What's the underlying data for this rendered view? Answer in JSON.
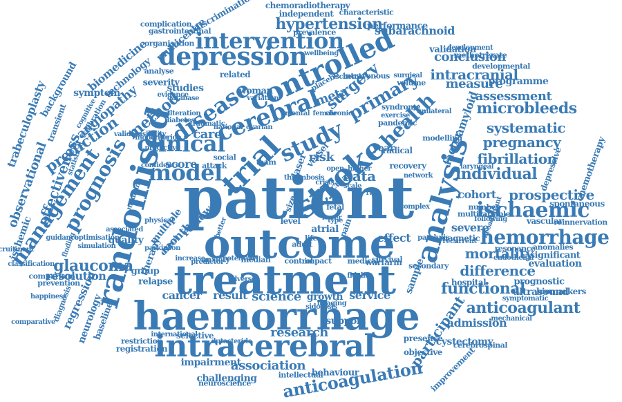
{
  "color": "#3a7bb5",
  "words": [
    "patient",
    "outcome",
    "treatment",
    "haemorrhage",
    "randomised",
    "intracerebral",
    "stroke",
    "analysis",
    "trial",
    "depression",
    "controlled",
    "cerebral",
    "intervention",
    "clinical",
    "model",
    "study",
    "disease",
    "management",
    "prognosis",
    "health",
    "hemorrhage",
    "ischaemic",
    "anticoagulant",
    "primary",
    "functional",
    "individual",
    "microbleeds",
    "prospective",
    "glaucoma",
    "anticoagulation",
    "participant",
    "hypertension",
    "intracranial",
    "systematic",
    "pregnancy",
    "fibrillation",
    "mortality",
    "difference",
    "research",
    "association",
    "science",
    "surgery",
    "method",
    "prediction",
    "effectiveness",
    "observational",
    "trabeculoplasty",
    "care",
    "data",
    "risk",
    "meta",
    "conclusion",
    "assessment",
    "measure",
    "subarachnoid",
    "angiopathy",
    "regression",
    "cancer",
    "result",
    "service",
    "effect",
    "admission",
    "resolution",
    "quality",
    "score",
    "month",
    "review",
    "multiple",
    "cohort",
    "amyloid",
    "factor",
    "sample",
    "severe",
    "evaluation",
    "significant",
    "ultrasound",
    "growth",
    "support",
    "impairment",
    "challenging",
    "selective",
    "cystectomy",
    "presence",
    "objective",
    "multicentre",
    "discrimination",
    "chemoradiotherapy",
    "independent",
    "characteristic",
    "performance",
    "validation",
    "programme",
    "biomedicine",
    "technology",
    "symptom",
    "background",
    "ischemic",
    "neurology",
    "baseline",
    "registration",
    "restriction",
    "relapse",
    "therapy",
    "group",
    "studies",
    "woman",
    "related",
    "severity",
    "analyse",
    "vascular",
    "spontaneous",
    "reinnervation",
    "chemotherapy",
    "depressive",
    "hospital",
    "prognostic",
    "biomarkers",
    "resonance",
    "warfarin",
    "atrial",
    "behaviour",
    "neuroscience",
    "intellectual",
    "improvement",
    "cerebrospinal",
    "transient",
    "complication",
    "gastrointestinal",
    "prevalence",
    "laser",
    "vessel",
    "year",
    "ocular",
    "event",
    "level",
    "size",
    "pain",
    "multivariable",
    "number",
    "magnetic",
    "anomalies",
    "secondary",
    "radical",
    "recovery",
    "pandemic",
    "syndrome",
    "intravenous",
    "placebo",
    "surgical",
    "developmental",
    "methotrexate",
    "development",
    "volume",
    "organisation",
    "calibration",
    "diagnosis",
    "prevention",
    "comparison",
    "classification",
    "optimisation",
    "simulation",
    "parkinson",
    "anxiety",
    "median",
    "control",
    "impact",
    "medical",
    "survival",
    "adult",
    "team",
    "life",
    "fetal",
    "social",
    "attack",
    "international",
    "dutasteride",
    "following",
    "recurrent",
    "endothelial",
    "symptomatic",
    "mechanical",
    "paralysis",
    "modelling",
    "unilateral",
    "neoadjuvant",
    "exercise",
    "female",
    "chronic",
    "mental",
    "national",
    "traumatic",
    "ovarian",
    "wellbeing",
    "ischemia",
    "variation",
    "database",
    "evidence",
    "alteration",
    "diabetes",
    "laryngeal",
    "network",
    "complex",
    "thrombosis",
    "open",
    "crisis",
    "scale",
    "rate",
    "type",
    "lower",
    "higher",
    "better",
    "predictor",
    "increase",
    "potential",
    "adverse",
    "fidelity",
    "imaging",
    "sidorosis",
    "guidance",
    "finding",
    "statistical",
    "cognitive",
    "moderate",
    "feasibility",
    "physical",
    "medicine",
    "confidence",
    "predictive",
    "validate",
    "recruitment",
    "happiness",
    "comparative",
    "associated",
    "criterion",
    "important",
    "previous"
  ]
}
